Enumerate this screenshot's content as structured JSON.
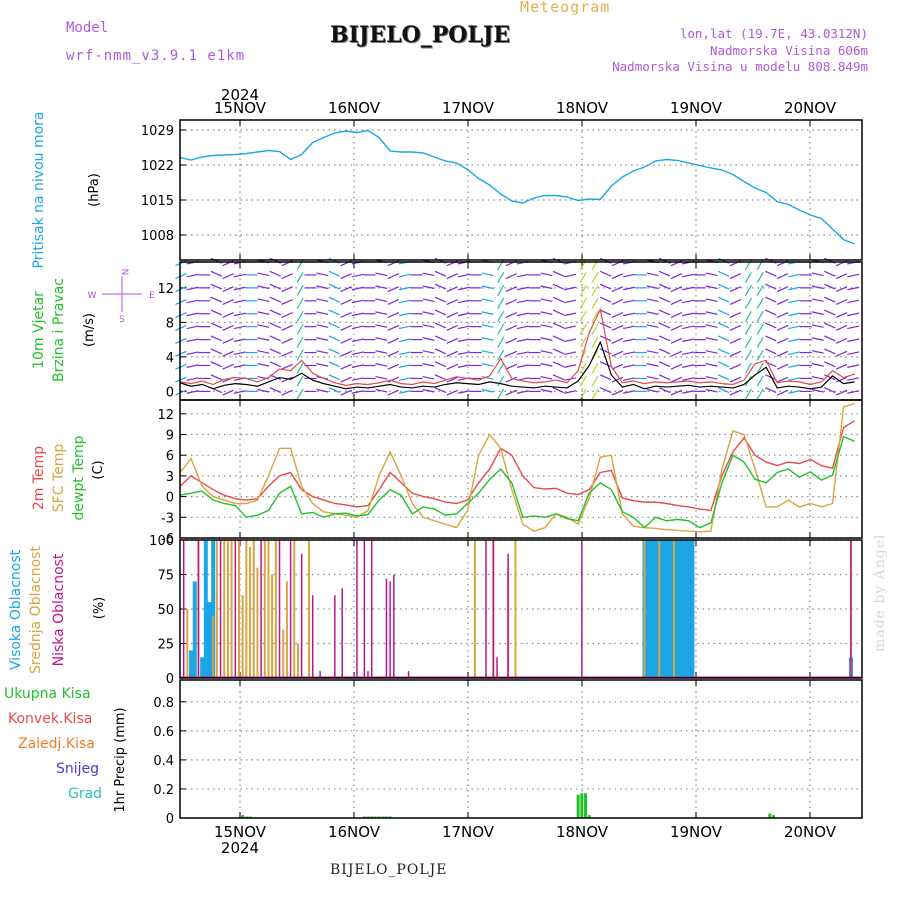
{
  "header": {
    "model_label": "Model",
    "model_name": "wrf-nmm_v3.9.1 e1km",
    "title": "BIJELO_POLJE",
    "app_title": "Meteogram",
    "lonlat": "lon,lat (19.7E, 43.0312N)",
    "altitude": "Nadmorska Visina 606m",
    "model_altitude": "Nadmorska Visina u modelu 808.849m"
  },
  "footer": {
    "station": "BIJELO_POLJE",
    "credit": "made by Angel"
  },
  "time_axis": {
    "year": "2024",
    "days": [
      "15NOV",
      "16NOV",
      "17NOV",
      "18NOV",
      "19NOV",
      "20NOV"
    ]
  },
  "compass": {
    "n": "N",
    "s": "S",
    "w": "W",
    "e": "E"
  },
  "colors": {
    "pressure": "#1ba6e6",
    "wind_black": "#000000",
    "wind_red": "#e84a4a",
    "temp2m": "#e84a4a",
    "sfc": "#d9a441",
    "dewpt": "#22c22a",
    "high_cloud": "#1ba6e6",
    "mid_cloud": "#d9a441",
    "low_cloud": "#c0148c",
    "total_precip": "#22c22a",
    "conv_precip": "#e84a4a",
    "frz_precip": "#f07d2a",
    "snow": "#4a3ad8",
    "graupel": "#2ac4b4"
  },
  "chart_data": [
    {
      "type": "line",
      "name": "pressure",
      "ylabel": "Pritisak na nivou mora",
      "unit": "(hPa)",
      "ylim": [
        1003,
        1031
      ],
      "yticks": [
        1008,
        1015,
        1022,
        1029
      ],
      "grid": true,
      "x": [
        0,
        3,
        6,
        9,
        12,
        15,
        18,
        21,
        24,
        27,
        30,
        33,
        36,
        39,
        42,
        45,
        48,
        51,
        54,
        57,
        60,
        63,
        66,
        69,
        72,
        75,
        78,
        81,
        84,
        87,
        90,
        93,
        96,
        99,
        102,
        105,
        108,
        111,
        114,
        117,
        120,
        123,
        126,
        129,
        132,
        135,
        138,
        141,
        144,
        147,
        150,
        153,
        156,
        159,
        162,
        165,
        168,
        171,
        174,
        177,
        180,
        183
      ],
      "series": [
        {
          "name": "Pritisak na nivou mora",
          "values": [
            1023.5,
            1023,
            1023.6,
            1023.9,
            1024,
            1024.1,
            1024.3,
            1024.6,
            1024.9,
            1024.7,
            1023.1,
            1024.1,
            1026.5,
            1027.5,
            1028.4,
            1028.8,
            1028.5,
            1028.9,
            1027.5,
            1024.8,
            1024.6,
            1024.6,
            1024.4,
            1023.6,
            1022.8,
            1022.4,
            1021.1,
            1019.3,
            1018,
            1016.2,
            1014.8,
            1014.4,
            1015.4,
            1015.9,
            1015.9,
            1015.6,
            1014.9,
            1015.2,
            1015.1,
            1017.8,
            1019.6,
            1020.8,
            1021.6,
            1022.8,
            1023.1,
            1022.9,
            1022.4,
            1021.9,
            1021.4,
            1021,
            1020.1,
            1018.7,
            1017.4,
            1016.5,
            1014.7,
            1014.1,
            1013,
            1012,
            1011.3,
            1009.2,
            1007.1,
            1006.2
          ]
        }
      ]
    },
    {
      "type": "line",
      "name": "wind",
      "ylabel": "10m Vjetar Brzina i Pravac",
      "ylabel_lines": [
        "10m Vjetar",
        "Brzina i Pravac"
      ],
      "unit": "(m/s)",
      "ylim": [
        -1,
        15
      ],
      "yticks": [
        0,
        4,
        8,
        12
      ],
      "barb_levels": [
        0,
        1.5,
        3,
        4.5,
        6,
        7.5,
        9,
        10.5,
        12,
        13.5,
        15
      ],
      "grid": true,
      "x": [
        0,
        3,
        6,
        9,
        12,
        15,
        18,
        21,
        24,
        27,
        30,
        33,
        36,
        39,
        42,
        45,
        48,
        51,
        54,
        57,
        60,
        63,
        66,
        69,
        72,
        75,
        78,
        81,
        84,
        87,
        90,
        93,
        96,
        99,
        102,
        105,
        108,
        111,
        114,
        117,
        120,
        123,
        126,
        129,
        132,
        135,
        138,
        141,
        144,
        147,
        150,
        153,
        156,
        159,
        162,
        165,
        168,
        171,
        174,
        177,
        180,
        183
      ],
      "series": [
        {
          "name": "black",
          "values": [
            1,
            0.6,
            0.8,
            0.3,
            0.7,
            0.9,
            0.8,
            0.6,
            1.1,
            1.6,
            1.4,
            2.1,
            1.3,
            0.9,
            0.6,
            0.3,
            0.5,
            0.4,
            0.6,
            0.8,
            0.5,
            0.4,
            0.6,
            0.5,
            0.8,
            1,
            0.9,
            0.8,
            1.1,
            0.9,
            0.6,
            0.5,
            0.4,
            0.6,
            0.5,
            0.4,
            1.2,
            3,
            5.7,
            1.9,
            0.5,
            0.8,
            0.3,
            0.6,
            0.5,
            0.6,
            0.7,
            0.5,
            0.6,
            0.5,
            0.4,
            0.8,
            1.9,
            2.8,
            0.4,
            0.6,
            0.5,
            0.3,
            0.5,
            1.8,
            0.9,
            1.1
          ]
        },
        {
          "name": "red",
          "values": [
            1.1,
            0.9,
            1.2,
            0.8,
            1.4,
            1.6,
            1.5,
            1.1,
            1.6,
            2.6,
            2.4,
            3.6,
            2.1,
            1.5,
            1,
            0.7,
            0.9,
            0.8,
            1,
            1.3,
            0.9,
            0.8,
            1.1,
            0.9,
            1.3,
            1.7,
            1.5,
            1.3,
            1.8,
            3.8,
            1.5,
            1.2,
            1,
            1.1,
            1.3,
            1,
            2.4,
            6.8,
            9.5,
            2.9,
            1,
            1.2,
            0.9,
            1.1,
            1,
            1.1,
            1.2,
            1,
            1.1,
            0.9,
            0.8,
            1.3,
            3.2,
            3.6,
            1,
            1.2,
            1.1,
            0.8,
            1.1,
            2.4,
            1.6,
            2
          ]
        }
      ]
    },
    {
      "type": "line",
      "name": "temperature",
      "ylabel_lines": [
        "2m Temp",
        "SFC Temp",
        "dewpt Temp"
      ],
      "unit": "(C)",
      "ylim": [
        -6,
        14
      ],
      "yticks": [
        -6,
        -3,
        0,
        3,
        6,
        9,
        12
      ],
      "grid": true,
      "x": [
        0,
        3,
        6,
        9,
        12,
        15,
        18,
        21,
        24,
        27,
        30,
        33,
        36,
        39,
        42,
        45,
        48,
        51,
        54,
        57,
        60,
        63,
        66,
        69,
        72,
        75,
        78,
        81,
        84,
        87,
        90,
        93,
        96,
        99,
        102,
        105,
        108,
        111,
        114,
        117,
        120,
        123,
        126,
        129,
        132,
        135,
        138,
        141,
        144,
        147,
        150,
        153,
        156,
        159,
        162,
        165,
        168,
        171,
        174,
        177,
        180,
        183
      ],
      "series": [
        {
          "name": "2m Temp",
          "values": [
            1.5,
            3,
            2,
            1,
            0.2,
            -0.3,
            -0.5,
            -0.3,
            1.5,
            3,
            3.5,
            1,
            0,
            -0.5,
            -1,
            -1.2,
            -1.5,
            -1.3,
            1,
            3.5,
            2,
            0.5,
            0,
            -0.3,
            -0.8,
            -1,
            -0.5,
            2,
            4,
            7,
            6,
            3,
            1.3,
            1.1,
            1.2,
            0.5,
            0.3,
            1,
            3.5,
            3.8,
            -0.2,
            -0.6,
            -0.8,
            -0.8,
            -1,
            -1.3,
            -1.5,
            -1.8,
            -2,
            3,
            6.5,
            8.5,
            6,
            5,
            4.5,
            5,
            4.8,
            5.4,
            4.5,
            4.1,
            10,
            11
          ]
        },
        {
          "name": "SFC Temp",
          "values": [
            3.5,
            5.5,
            1.5,
            0,
            -0.5,
            -1,
            -1,
            -0.5,
            3,
            7,
            7,
            1.5,
            -1,
            -2.2,
            -2.5,
            -2.7,
            -3,
            -2,
            3,
            6.5,
            3,
            -1,
            -3,
            -3.5,
            -4,
            -4.5,
            -2,
            6,
            9,
            7,
            1,
            -4,
            -5,
            -4.5,
            -2.5,
            -3,
            -4,
            -0.2,
            5.7,
            6,
            -2.5,
            -4.3,
            -4.5,
            -4.6,
            -4.8,
            -4.9,
            -5,
            -5.1,
            -5,
            4,
            9.5,
            9,
            4,
            -1.5,
            -1.5,
            -0.5,
            -1.5,
            -1,
            -1.5,
            -1,
            13,
            13.5
          ]
        },
        {
          "name": "dewpt Temp",
          "values": [
            0.2,
            0.5,
            0.8,
            -0.5,
            -1,
            -1.3,
            -3,
            -2.7,
            -2,
            0.5,
            1.5,
            -2.5,
            -2.3,
            -3,
            -2.5,
            -2.4,
            -2.8,
            -2.6,
            -0.5,
            1,
            0.2,
            -2.5,
            -1.5,
            -1.8,
            -2.7,
            -2.5,
            -1,
            0.5,
            2.5,
            4,
            2,
            -3,
            -2.8,
            -3,
            -2.5,
            -3.2,
            -3.5,
            0.5,
            2,
            1,
            -2.2,
            -3,
            -4.5,
            -3,
            -3.5,
            -3.3,
            -3.5,
            -4.5,
            -3.8,
            2,
            6,
            5,
            2.5,
            2,
            3.5,
            4,
            2.8,
            3.6,
            2.4,
            3.1,
            8.7,
            8
          ]
        }
      ]
    },
    {
      "type": "bar",
      "name": "cloud_cover",
      "ylabel_lines": [
        "Visoka Oblacnost",
        "Srednja Oblacnost",
        "Niska Oblacnost"
      ],
      "unit": "(%)",
      "ylim": [
        0,
        100
      ],
      "yticks": [
        0,
        25,
        50,
        75,
        100
      ],
      "grid": true,
      "series": [
        {
          "name": "Visoka Oblacnost",
          "x": [
            3,
            4,
            6,
            7,
            8,
            9,
            126,
            127,
            128,
            129,
            130,
            131,
            132,
            133,
            134,
            135,
            136,
            137,
            138,
            139,
            182
          ],
          "values": [
            20,
            70,
            15,
            100,
            55,
            100,
            100,
            100,
            100,
            100,
            100,
            100,
            100,
            100,
            100,
            100,
            100,
            100,
            100,
            100,
            15
          ]
        },
        {
          "name": "Srednja Oblacnost",
          "x": [
            2,
            5,
            9,
            10,
            12,
            13,
            14,
            16,
            17,
            18,
            19,
            20,
            21,
            23,
            24,
            25,
            26,
            28,
            29,
            31,
            32,
            35,
            80,
            85,
            89,
            91,
            126,
            130,
            134,
            182
          ],
          "values": [
            50,
            100,
            45,
            100,
            100,
            100,
            100,
            100,
            60,
            100,
            95,
            100,
            80,
            100,
            100,
            75,
            100,
            35,
            70,
            100,
            25,
            100,
            100,
            100,
            80,
            100,
            100,
            100,
            100,
            100
          ]
        },
        {
          "name": "Niska Oblacnost",
          "x": [
            1,
            5,
            11,
            15,
            22,
            27,
            30,
            33,
            36,
            38,
            42,
            44,
            48,
            50,
            51,
            52,
            56,
            57,
            58,
            62,
            63,
            83,
            85,
            86,
            89,
            97,
            98,
            104,
            105,
            109,
            115,
            117,
            182
          ],
          "values": [
            100,
            100,
            100,
            100,
            100,
            100,
            100,
            90,
            60,
            5,
            60,
            65,
            100,
            100,
            5,
            100,
            72,
            70,
            75,
            5,
            0,
            100,
            100,
            15,
            90,
            0,
            0,
            0,
            0,
            100,
            0,
            0,
            100
          ]
        }
      ]
    },
    {
      "type": "bar",
      "name": "precipitation",
      "ylabel": "1hr Precip",
      "unit": "(mm)",
      "ylim": [
        0,
        0.95
      ],
      "yticks": [
        0,
        0.2,
        0.4,
        0.6,
        0.8
      ],
      "grid": true,
      "legend": [
        "Ukupna Kisa",
        "Konvek.Kisa",
        "Zaledj.Kisa",
        "Snijeg",
        "Grad"
      ],
      "series": [
        {
          "name": "Ukupna Kisa",
          "x": [
            17,
            18,
            19,
            50,
            51,
            52,
            53,
            54,
            55,
            56,
            57,
            108,
            109,
            110,
            111,
            160,
            161
          ],
          "values": [
            0.02,
            0.01,
            0.01,
            0.01,
            0.01,
            0.01,
            0.01,
            0.01,
            0.01,
            0.01,
            0.01,
            0.16,
            0.17,
            0.17,
            0.02,
            0.03,
            0.02
          ]
        }
      ]
    }
  ]
}
